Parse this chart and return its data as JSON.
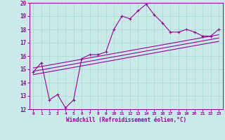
{
  "xlabel": "Windchill (Refroidissement éolien,°C)",
  "bg_color": "#caeaea",
  "line_color": "#990099",
  "grid_color": "#aaddcc",
  "xlim": [
    -0.5,
    23.5
  ],
  "ylim": [
    12,
    20
  ],
  "yticks": [
    12,
    13,
    14,
    15,
    16,
    17,
    18,
    19,
    20
  ],
  "xticks": [
    0,
    1,
    2,
    3,
    4,
    5,
    6,
    7,
    8,
    9,
    10,
    11,
    12,
    13,
    14,
    15,
    16,
    17,
    18,
    19,
    20,
    21,
    22,
    23
  ],
  "wavy_x": [
    0,
    1,
    2,
    3,
    4,
    5,
    6,
    7,
    8,
    9,
    10,
    11,
    12,
    13,
    14,
    15,
    16,
    17,
    18,
    19,
    20,
    21,
    22,
    23
  ],
  "wavy_y": [
    14.8,
    15.5,
    12.7,
    13.1,
    12.1,
    12.7,
    15.8,
    16.1,
    16.1,
    16.3,
    18.0,
    19.0,
    18.8,
    19.4,
    19.9,
    19.1,
    18.5,
    17.8,
    17.8,
    18.0,
    17.8,
    17.5,
    17.5,
    18.0
  ],
  "line1_x": [
    0,
    23
  ],
  "line1_y": [
    14.6,
    17.1
  ],
  "line2_x": [
    0,
    23
  ],
  "line2_y": [
    14.85,
    17.35
  ],
  "line3_x": [
    0,
    23
  ],
  "line3_y": [
    15.1,
    17.6
  ]
}
